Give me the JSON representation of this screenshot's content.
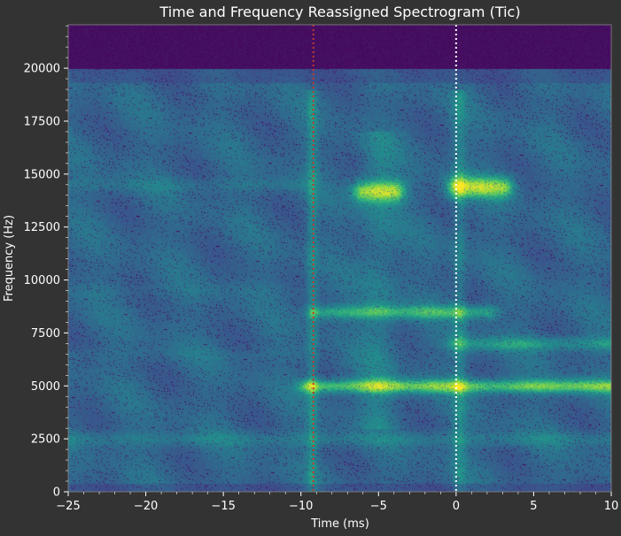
{
  "chart_data": {
    "type": "heatmap",
    "title": "Time and Frequency Reassigned Spectrogram (Tic)",
    "xlabel": "Time (ms)",
    "ylabel": "Frequency (Hz)",
    "xlim": [
      -25,
      10
    ],
    "ylim": [
      0,
      22050
    ],
    "x_ticks": [
      -25,
      -20,
      -15,
      -10,
      -5,
      0,
      5,
      10
    ],
    "x_tick_labels": [
      "−25",
      "−20",
      "−15",
      "−10",
      "−5",
      "0",
      "5",
      "10"
    ],
    "y_ticks": [
      0,
      2500,
      5000,
      7500,
      10000,
      12500,
      15000,
      17500,
      20000
    ],
    "y_tick_labels": [
      "0",
      "2500",
      "5000",
      "7500",
      "10000",
      "12500",
      "15000",
      "17500",
      "20000"
    ],
    "colormap": "viridis",
    "grid": false,
    "markers": [
      {
        "time_ms": -9.2,
        "style": "dotted",
        "color": "#c0392b"
      },
      {
        "time_ms": 0,
        "style": "dotted",
        "color": "#ffffff"
      }
    ],
    "energy_bands": [
      {
        "freq_hz": 5000,
        "t_start": -9.5,
        "t_end": 10,
        "intensity": 0.95
      },
      {
        "freq_hz": 14200,
        "t_start": -6,
        "t_end": -4,
        "intensity": 1.0
      },
      {
        "freq_hz": 14400,
        "t_start": 0,
        "t_end": 3,
        "intensity": 1.0
      },
      {
        "freq_hz": 8500,
        "t_start": -9,
        "t_end": 2,
        "intensity": 0.8
      },
      {
        "freq_hz": 7000,
        "t_start": 0,
        "t_end": 10,
        "intensity": 0.7
      },
      {
        "freq_hz": 2500,
        "t_start": -25,
        "t_end": 10,
        "intensity": 0.55
      },
      {
        "freq_hz": 14500,
        "t_start": -25,
        "t_end": -10,
        "intensity": 0.5
      },
      {
        "freq_hz": 9500,
        "t_start": -25,
        "t_end": -9,
        "intensity": 0.45
      },
      {
        "freq_hz": 6500,
        "t_start": -25,
        "t_end": -10,
        "intensity": 0.45
      }
    ],
    "noise_cutoff_hz": 20000
  }
}
